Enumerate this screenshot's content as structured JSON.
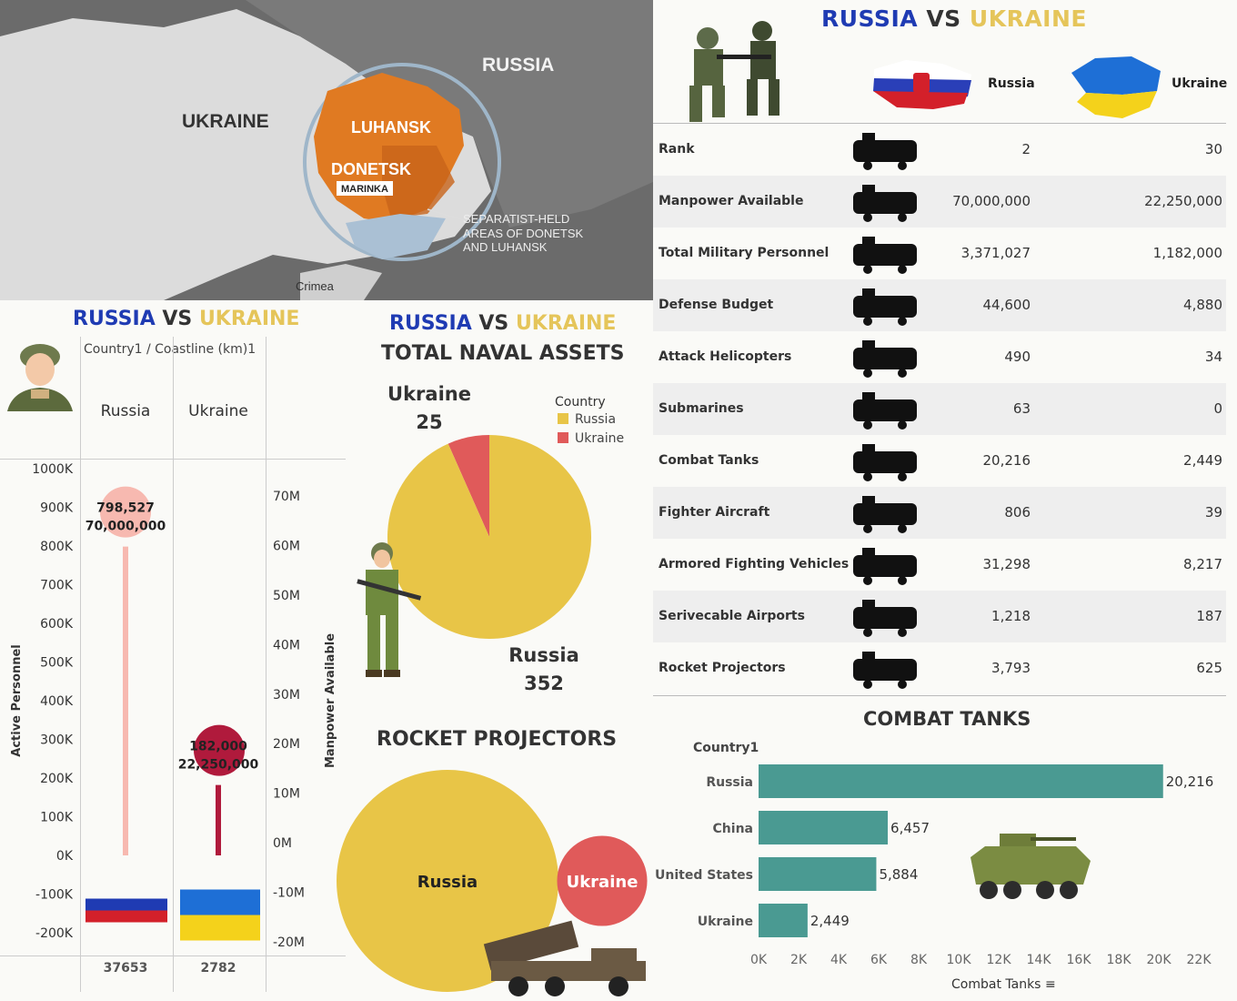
{
  "map": {
    "labels": [
      "UKRAINE",
      "RUSSIA",
      "LUHANSK",
      "DONETSK",
      "MARINKA",
      "SEPARATIST-HELD",
      "AREAS OF DONETSK",
      "AND LUHANSK",
      "Crimea"
    ]
  },
  "table": {
    "title_ru": "RUSSIA",
    "title_vs": "VS",
    "title_ua": "UKRAINE",
    "col_ru": "Russia",
    "col_ua": "Ukraine",
    "rows": [
      {
        "label": "Rank",
        "ru": "2",
        "ua": "30",
        "icon": "rank-chevron-icon"
      },
      {
        "label": "Manpower Available",
        "ru": "70,000,000",
        "ua": "22,250,000",
        "icon": "soldiers-silhouette-icon"
      },
      {
        "label": "Total Military Personnel",
        "ru": "3,371,027",
        "ua": "1,182,000",
        "icon": "troops-silhouette-icon"
      },
      {
        "label": "Defense Budget",
        "ru": "44,600",
        "ua": "4,880",
        "icon": "budget-officer-icon"
      },
      {
        "label": "Attack Helicopters",
        "ru": "490",
        "ua": "34",
        "icon": "helicopter-icon"
      },
      {
        "label": "Submarines",
        "ru": "63",
        "ua": "0",
        "icon": "submarine-icon"
      },
      {
        "label": "Combat Tanks",
        "ru": "20,216",
        "ua": "2,449",
        "icon": "tank-icon"
      },
      {
        "label": "Fighter Aircraft",
        "ru": "806",
        "ua": "39",
        "icon": "fighter-jet-icon"
      },
      {
        "label": "Armored Fighting Vehicles",
        "ru": "31,298",
        "ua": "8,217",
        "icon": "armored-vehicles-icon"
      },
      {
        "label": "Serivecable Airports",
        "ru": "1,218",
        "ua": "187",
        "icon": "airport-icon"
      },
      {
        "label": "Rocket Projectors",
        "ru": "3,793",
        "ua": "625",
        "icon": "rocket-launcher-icon"
      }
    ]
  },
  "lollipop": {
    "title_ru": "RUSSIA",
    "title_vs": "VS",
    "title_ua": "UKRAINE",
    "header": "Country1  /  Coastline (km)1",
    "left_axis_label": "Active Personnel",
    "right_axis_label": "Manpower Available",
    "coast_ru": "37653",
    "coast_ua": "2782"
  },
  "naval": {
    "title_ru": "RUSSIA",
    "title_vs": "VS",
    "title_ua": "UKRAINE",
    "subtitle": "TOTAL NAVAL ASSETS",
    "legend_title": "Country"
  },
  "rocket": {
    "title": "ROCKET PROJECTORS"
  },
  "tanks": {
    "title": "COMBAT TANKS",
    "dim_label": "Country1",
    "x_label": "Combat Tanks"
  },
  "chart_data": [
    {
      "type": "lollipop",
      "title": "RUSSIA VS UKRAINE",
      "categories": [
        "Russia",
        "Ukraine"
      ],
      "series": [
        {
          "name": "Active Personnel",
          "values": [
            798527,
            182000
          ]
        },
        {
          "name": "Manpower Available",
          "values": [
            70000000,
            22250000
          ]
        }
      ],
      "data_labels": [
        [
          "798,527",
          "70,000,000"
        ],
        [
          "182,000",
          "22,250,000"
        ]
      ],
      "xlabel": "",
      "ylabel": "Active Personnel",
      "ylim": [
        -200000,
        1000000
      ],
      "y_ticks": [
        "1000K",
        "900K",
        "800K",
        "700K",
        "600K",
        "500K",
        "400K",
        "300K",
        "200K",
        "100K",
        "0K",
        "-100K",
        "-200K"
      ],
      "y2label": "Manpower Available",
      "y2lim": [
        -20000000,
        70000000
      ],
      "y2_ticks": [
        "70M",
        "60M",
        "50M",
        "40M",
        "30M",
        "20M",
        "10M",
        "0M",
        "-10M",
        "-20M"
      ],
      "colors": {
        "Russia": "#f7b9b0",
        "Ukraine": "#b01a3c"
      }
    },
    {
      "type": "pie",
      "title": "TOTAL NAVAL ASSETS",
      "categories": [
        "Russia",
        "Ukraine"
      ],
      "values": [
        352,
        25
      ],
      "legend": "top-right",
      "colors": {
        "Russia": "#e8c547",
        "Ukraine": "#e05a5a"
      }
    },
    {
      "type": "bubble",
      "title": "ROCKET PROJECTORS",
      "categories": [
        "Russia",
        "Ukraine"
      ],
      "values": [
        3793,
        625
      ],
      "colors": {
        "Russia": "#e8c547",
        "Ukraine": "#e05a5a"
      }
    },
    {
      "type": "bar",
      "title": "COMBAT TANKS",
      "categories": [
        "Russia",
        "China",
        "United States",
        "Ukraine"
      ],
      "values": [
        20216,
        6457,
        5884,
        2449
      ],
      "value_labels": [
        "20,216",
        "6,457",
        "5,884",
        "2,449"
      ],
      "xlabel": "Combat Tanks",
      "ylabel": "Country1",
      "xlim": [
        0,
        22000
      ],
      "x_ticks": [
        "0K",
        "2K",
        "4K",
        "6K",
        "8K",
        "10K",
        "12K",
        "14K",
        "16K",
        "18K",
        "20K",
        "22K"
      ],
      "color": "#4a9a92"
    }
  ]
}
